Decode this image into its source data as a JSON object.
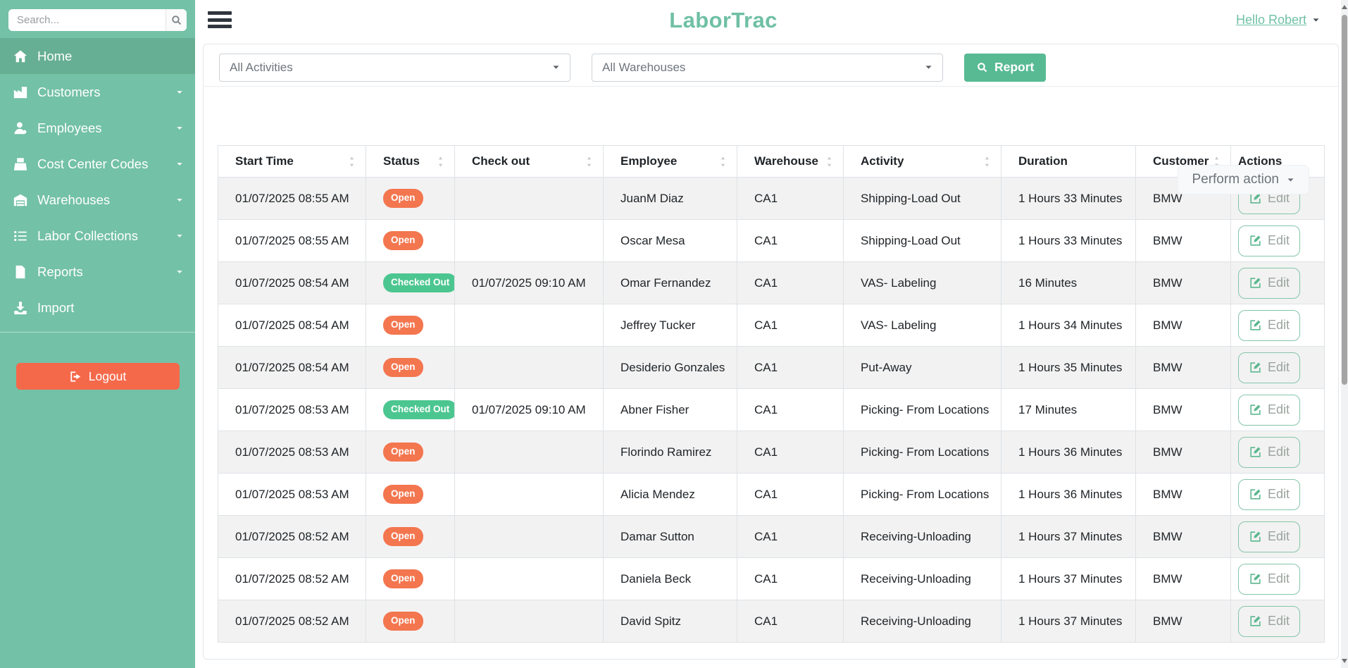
{
  "sidebar": {
    "search_placeholder": "Search...",
    "search_icon": "search-icon",
    "items": [
      {
        "label": "Home",
        "icon": "home-icon",
        "active": true,
        "caret": false
      },
      {
        "label": "Customers",
        "icon": "factory-icon",
        "active": false,
        "caret": true
      },
      {
        "label": "Employees",
        "icon": "user-icon",
        "active": false,
        "caret": true
      },
      {
        "label": "Cost Center Codes",
        "icon": "cash-register-icon",
        "active": false,
        "caret": true
      },
      {
        "label": "Warehouses",
        "icon": "warehouse-icon",
        "active": false,
        "caret": true
      },
      {
        "label": "Labor Collections",
        "icon": "list-icon",
        "active": false,
        "caret": true
      },
      {
        "label": "Reports",
        "icon": "file-icon",
        "active": false,
        "caret": true
      },
      {
        "label": "Import",
        "icon": "download-icon",
        "active": false,
        "caret": false
      }
    ],
    "logout_label": "Logout",
    "logout_icon": "sign-out-icon"
  },
  "header": {
    "title": "LaborTrac",
    "menu_icon": "hamburger-menu-icon",
    "user_menu": "Hello Robert",
    "user_caret_icon": "caret-down-icon"
  },
  "filters": {
    "activities": "All Activities",
    "warehouses": "All Warehouses",
    "report_label": "Report",
    "report_icon": "search-icon",
    "caret_icon": "caret-down-icon"
  },
  "actions": {
    "perform_action_label": "Perform action"
  },
  "table": {
    "edit_label": "Edit",
    "edit_icon": "edit-icon",
    "columns": [
      {
        "label": "Start Time",
        "sortable": true
      },
      {
        "label": "Status",
        "sortable": true
      },
      {
        "label": "Check out",
        "sortable": true
      },
      {
        "label": "Employee",
        "sortable": true
      },
      {
        "label": "Warehouse",
        "sortable": true
      },
      {
        "label": "Activity",
        "sortable": true
      },
      {
        "label": "Duration",
        "sortable": false
      },
      {
        "label": "Customer",
        "sortable": true
      },
      {
        "label": "Actions",
        "sortable": false
      }
    ],
    "rows": [
      {
        "start_time": "01/07/2025 08:55 AM",
        "status": "Open",
        "check_out": "",
        "employee": "JuanM Diaz",
        "warehouse": "CA1",
        "activity": "Shipping-Load Out",
        "duration": "1 Hours 33 Minutes",
        "customer": "BMW"
      },
      {
        "start_time": "01/07/2025 08:55 AM",
        "status": "Open",
        "check_out": "",
        "employee": "Oscar Mesa",
        "warehouse": "CA1",
        "activity": "Shipping-Load Out",
        "duration": "1 Hours 33 Minutes",
        "customer": "BMW"
      },
      {
        "start_time": "01/07/2025 08:54 AM",
        "status": "Checked Out",
        "check_out": "01/07/2025 09:10 AM",
        "employee": "Omar Fernandez",
        "warehouse": "CA1",
        "activity": "VAS- Labeling",
        "duration": "16 Minutes",
        "customer": "BMW"
      },
      {
        "start_time": "01/07/2025 08:54 AM",
        "status": "Open",
        "check_out": "",
        "employee": "Jeffrey Tucker",
        "warehouse": "CA1",
        "activity": "VAS- Labeling",
        "duration": "1 Hours 34 Minutes",
        "customer": "BMW"
      },
      {
        "start_time": "01/07/2025 08:54 AM",
        "status": "Open",
        "check_out": "",
        "employee": "Desiderio Gonzales",
        "warehouse": "CA1",
        "activity": "Put-Away",
        "duration": "1 Hours 35 Minutes",
        "customer": "BMW"
      },
      {
        "start_time": "01/07/2025 08:53 AM",
        "status": "Checked Out",
        "check_out": "01/07/2025 09:10 AM",
        "employee": "Abner Fisher",
        "warehouse": "CA1",
        "activity": "Picking- From Locations",
        "duration": "17 Minutes",
        "customer": "BMW"
      },
      {
        "start_time": "01/07/2025 08:53 AM",
        "status": "Open",
        "check_out": "",
        "employee": "Florindo Ramirez",
        "warehouse": "CA1",
        "activity": "Picking- From Locations",
        "duration": "1 Hours 36 Minutes",
        "customer": "BMW"
      },
      {
        "start_time": "01/07/2025 08:53 AM",
        "status": "Open",
        "check_out": "",
        "employee": "Alicia Mendez",
        "warehouse": "CA1",
        "activity": "Picking- From Locations",
        "duration": "1 Hours 36 Minutes",
        "customer": "BMW"
      },
      {
        "start_time": "01/07/2025 08:52 AM",
        "status": "Open",
        "check_out": "",
        "employee": "Damar Sutton",
        "warehouse": "CA1",
        "activity": "Receiving-Unloading",
        "duration": "1 Hours 37 Minutes",
        "customer": "BMW"
      },
      {
        "start_time": "01/07/2025 08:52 AM",
        "status": "Open",
        "check_out": "",
        "employee": "Daniela Beck",
        "warehouse": "CA1",
        "activity": "Receiving-Unloading",
        "duration": "1 Hours 37 Minutes",
        "customer": "BMW"
      },
      {
        "start_time": "01/07/2025 08:52 AM",
        "status": "Open",
        "check_out": "",
        "employee": "David Spitz",
        "warehouse": "CA1",
        "activity": "Receiving-Unloading",
        "duration": "1 Hours 37 Minutes",
        "customer": "BMW"
      }
    ]
  },
  "colors": {
    "sidebar": "#73c1a6",
    "sidebar_active": "#66af94",
    "accent_teal": "#58ba93",
    "title_teal": "#6fc0a5",
    "logout_orange": "#f5694b",
    "badge_open": "#f3764f",
    "badge_checked_out": "#4cc690",
    "table_border": "#dee2e6",
    "row_stripe": "#f2f2f2"
  }
}
